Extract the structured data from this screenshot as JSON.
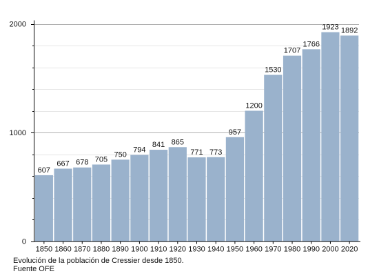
{
  "chart_data": {
    "type": "bar",
    "categories": [
      "1850",
      "1860",
      "1870",
      "1880",
      "1890",
      "1900",
      "1910",
      "1920",
      "1930",
      "1940",
      "1950",
      "1960",
      "1970",
      "1980",
      "1990",
      "2000",
      "2020"
    ],
    "values": [
      607,
      667,
      678,
      705,
      750,
      794,
      841,
      865,
      771,
      773,
      957,
      1200,
      1530,
      1707,
      1766,
      1923,
      1892
    ],
    "ylim": [
      0,
      2000
    ],
    "yticks": [
      0,
      1000,
      2000
    ],
    "grid": true,
    "colors": {
      "bar": "#9ab2cc",
      "grid": "#cccccc",
      "axis": "#000000"
    }
  },
  "caption": {
    "line1": "Evolución de la población de Cressier desde 1850.",
    "line2": "Fuente OFE"
  }
}
